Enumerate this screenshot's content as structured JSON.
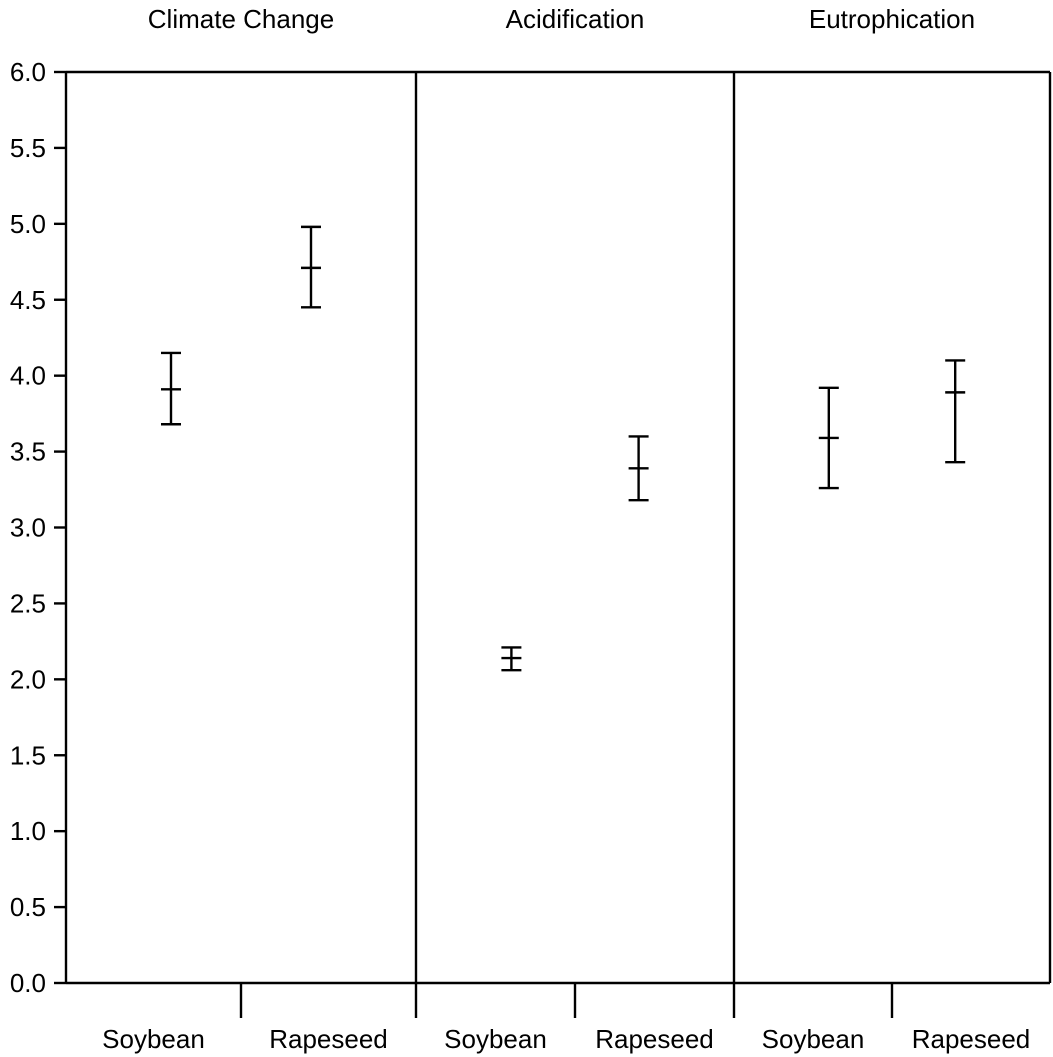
{
  "chart_data": {
    "type": "errorbar",
    "ylim": [
      0,
      6
    ],
    "yticks": [
      "0.0",
      "0.5",
      "1.0",
      "1.5",
      "2.0",
      "2.5",
      "3.0",
      "3.5",
      "4.0",
      "4.5",
      "5.0",
      "5.5",
      "6.0"
    ],
    "panels": [
      {
        "title": "Climate Change",
        "points": [
          {
            "category": "Soybean",
            "center": 3.91,
            "low": 3.68,
            "high": 4.15
          },
          {
            "category": "Rapeseed",
            "center": 4.71,
            "low": 4.45,
            "high": 4.98
          }
        ]
      },
      {
        "title": "Acidification",
        "points": [
          {
            "category": "Soybean",
            "center": 2.14,
            "low": 2.06,
            "high": 2.21
          },
          {
            "category": "Rapeseed",
            "center": 3.39,
            "low": 3.18,
            "high": 3.6
          }
        ]
      },
      {
        "title": "Eutrophication",
        "points": [
          {
            "category": "Soybean",
            "center": 3.59,
            "low": 3.26,
            "high": 3.92
          },
          {
            "category": "Rapeseed",
            "center": 3.89,
            "low": 3.43,
            "high": 4.1
          }
        ]
      }
    ]
  }
}
